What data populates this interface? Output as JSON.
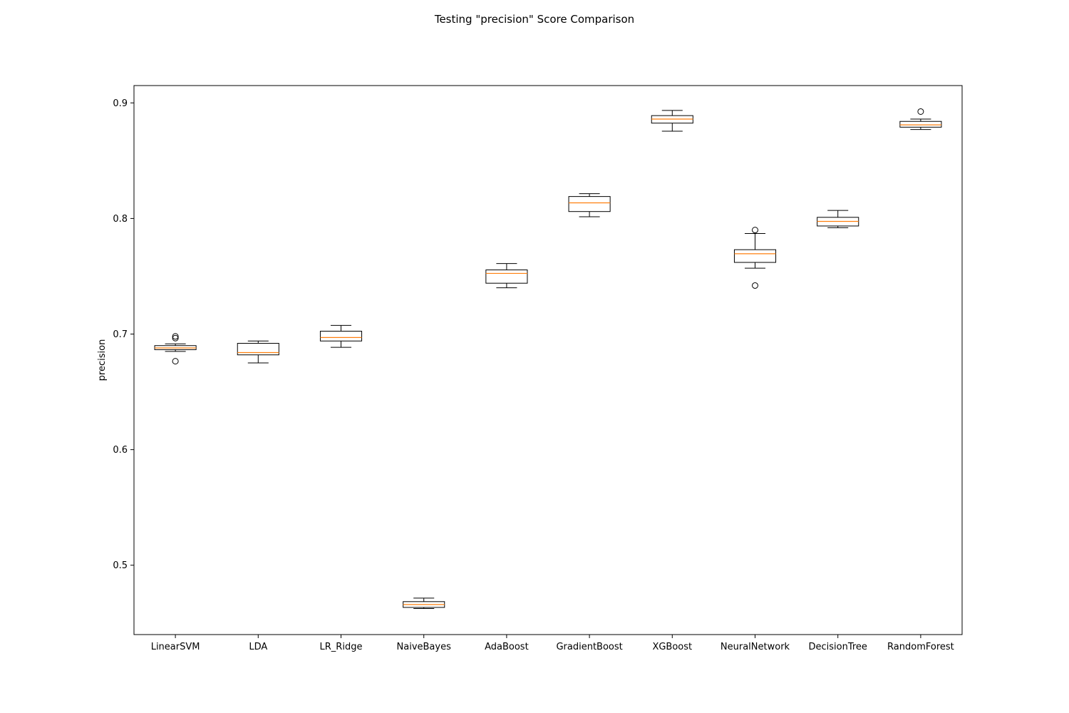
{
  "chart_data": {
    "type": "boxplot",
    "title": "Testing \"precision\" Score Comparison",
    "xlabel": "",
    "ylabel": "precision",
    "ylim": [
      0.44,
      0.915
    ],
    "yticks": [
      0.5,
      0.6,
      0.7,
      0.8,
      0.9
    ],
    "ytick_labels": [
      "0.5",
      "0.6",
      "0.7",
      "0.8",
      "0.9"
    ],
    "grid": false,
    "colors": {
      "box": "#000000",
      "median": "#ff7f0e",
      "flier": "#000000"
    },
    "categories": [
      "LinearSVM",
      "LDA",
      "LR_Ridge",
      "NaiveBayes",
      "AdaBoost",
      "GradientBoost",
      "XGBoost",
      "NeuralNetwork",
      "DecisionTree",
      "RandomForest"
    ],
    "boxes": [
      {
        "name": "LinearSVM",
        "whislo": 0.685,
        "q1": 0.6865,
        "med": 0.688,
        "q3": 0.69,
        "whishi": 0.6915,
        "fliers": [
          0.6765,
          0.6965,
          0.698
        ]
      },
      {
        "name": "LDA",
        "whislo": 0.675,
        "q1": 0.682,
        "med": 0.684,
        "q3": 0.692,
        "whishi": 0.694,
        "fliers": []
      },
      {
        "name": "LR_Ridge",
        "whislo": 0.6885,
        "q1": 0.694,
        "med": 0.697,
        "q3": 0.7025,
        "whishi": 0.7075,
        "fliers": []
      },
      {
        "name": "NaiveBayes",
        "whislo": 0.4625,
        "q1": 0.4635,
        "med": 0.466,
        "q3": 0.4685,
        "whishi": 0.4715,
        "fliers": []
      },
      {
        "name": "AdaBoost",
        "whislo": 0.74,
        "q1": 0.744,
        "med": 0.7525,
        "q3": 0.7555,
        "whishi": 0.761,
        "fliers": []
      },
      {
        "name": "GradientBoost",
        "whislo": 0.8015,
        "q1": 0.806,
        "med": 0.8135,
        "q3": 0.819,
        "whishi": 0.8215,
        "fliers": []
      },
      {
        "name": "XGBoost",
        "whislo": 0.8755,
        "q1": 0.8825,
        "med": 0.886,
        "q3": 0.889,
        "whishi": 0.8935,
        "fliers": []
      },
      {
        "name": "NeuralNetwork",
        "whislo": 0.757,
        "q1": 0.762,
        "med": 0.7695,
        "q3": 0.773,
        "whishi": 0.787,
        "fliers": [
          0.742,
          0.79
        ]
      },
      {
        "name": "DecisionTree",
        "whislo": 0.792,
        "q1": 0.7935,
        "med": 0.7975,
        "q3": 0.801,
        "whishi": 0.807,
        "fliers": []
      },
      {
        "name": "RandomForest",
        "whislo": 0.877,
        "q1": 0.879,
        "med": 0.881,
        "q3": 0.884,
        "whishi": 0.886,
        "fliers": [
          0.8925
        ]
      }
    ]
  }
}
